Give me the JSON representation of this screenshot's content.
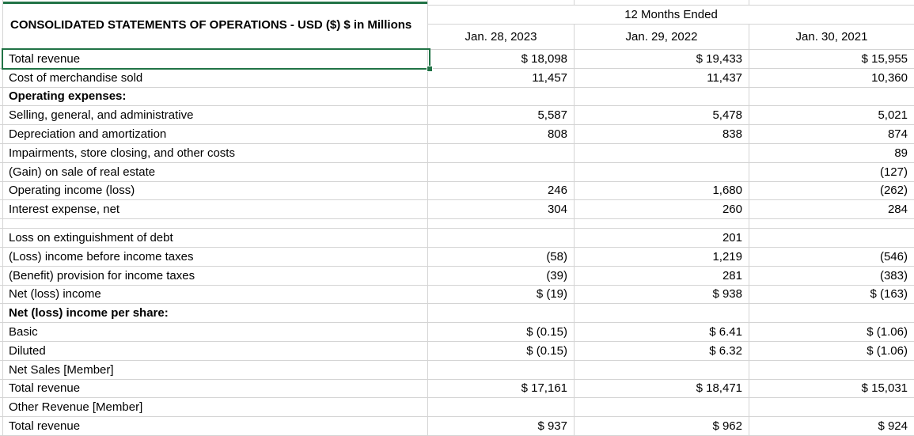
{
  "title": "CONSOLIDATED STATEMENTS OF OPERATIONS - USD ($) $ in Millions",
  "header": {
    "period_label": "12 Months Ended",
    "columns": [
      "Jan. 28, 2023",
      "Jan. 29, 2022",
      "Jan. 30, 2021"
    ]
  },
  "colors": {
    "selection_green": "#217346",
    "gridline_gray": "#d4d4d4"
  },
  "selected_cell": "Total revenue",
  "rows": [
    {
      "label": "Total revenue",
      "c1": "$ 18,098",
      "c2": "$ 19,433",
      "c3": "$ 15,955"
    },
    {
      "label": "Cost of merchandise sold",
      "c1": "11,457",
      "c2": "11,437",
      "c3": "10,360"
    },
    {
      "label": "Operating expenses:",
      "c1": "",
      "c2": "",
      "c3": ""
    },
    {
      "label": "Selling, general, and administrative",
      "c1": "5,587",
      "c2": "5,478",
      "c3": "5,021"
    },
    {
      "label": "Depreciation and amortization",
      "c1": "808",
      "c2": "838",
      "c3": "874"
    },
    {
      "label": "Impairments, store closing, and other costs",
      "c1": "",
      "c2": "",
      "c3": "89"
    },
    {
      "label": "(Gain) on sale of real estate",
      "c1": "",
      "c2": "",
      "c3": "(127)"
    },
    {
      "label": "Operating income (loss)",
      "c1": "246",
      "c2": "1,680",
      "c3": "(262)"
    },
    {
      "label": "Interest expense, net",
      "c1": "304",
      "c2": "260",
      "c3": "284"
    },
    {
      "label": "",
      "c1": "",
      "c2": "",
      "c3": ""
    },
    {
      "label": "Loss on extinguishment of debt",
      "c1": "",
      "c2": "201",
      "c3": ""
    },
    {
      "label": "(Loss) income before income taxes",
      "c1": "(58)",
      "c2": "1,219",
      "c3": "(546)"
    },
    {
      "label": "(Benefit) provision for income taxes",
      "c1": "(39)",
      "c2": "281",
      "c3": "(383)"
    },
    {
      "label": "Net (loss) income",
      "c1": "$ (19)",
      "c2": "$ 938",
      "c3": "$ (163)"
    },
    {
      "label": "Net (loss) income per share:",
      "c1": "",
      "c2": "",
      "c3": ""
    },
    {
      "label": "Basic",
      "c1": "$ (0.15)",
      "c2": "$ 6.41",
      "c3": "$ (1.06)"
    },
    {
      "label": "Diluted",
      "c1": "$ (0.15)",
      "c2": "$ 6.32",
      "c3": "$ (1.06)"
    },
    {
      "label": "Net Sales [Member]",
      "c1": "",
      "c2": "",
      "c3": ""
    },
    {
      "label": "Total revenue",
      "c1": "$ 17,161",
      "c2": "$ 18,471",
      "c3": "$ 15,031"
    },
    {
      "label": "Other Revenue [Member]",
      "c1": "",
      "c2": "",
      "c3": ""
    },
    {
      "label": "Total revenue",
      "c1": "$ 937",
      "c2": "$ 962",
      "c3": "$ 924"
    }
  ]
}
